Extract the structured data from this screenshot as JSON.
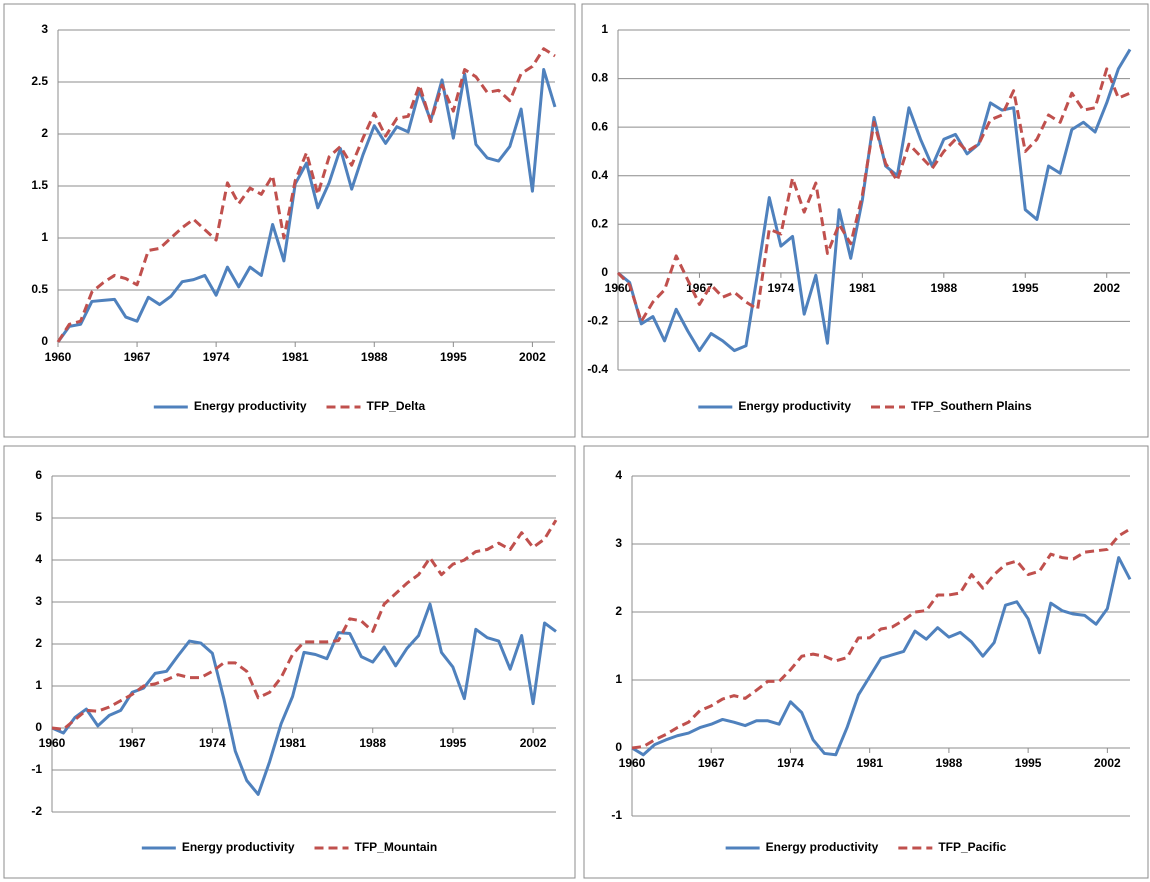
{
  "chart_data": [
    {
      "type": "line",
      "categories": [
        "1960",
        null,
        null,
        null,
        null,
        null,
        null,
        "1967",
        null,
        null,
        null,
        null,
        null,
        null,
        "1974",
        null,
        null,
        null,
        null,
        null,
        null,
        "1981",
        null,
        null,
        null,
        null,
        null,
        null,
        "1988",
        null,
        null,
        null,
        null,
        null,
        null,
        "1995",
        null,
        null,
        null,
        null,
        null,
        null,
        "2002",
        null,
        null
      ],
      "ylim": [
        0,
        3
      ],
      "yticks": [
        0,
        0.5,
        1,
        1.5,
        2,
        2.5,
        3
      ],
      "grid": true,
      "series": [
        {
          "name": "Energy productivity",
          "color": "#4f81bd",
          "dash": false,
          "values": [
            0,
            0.15,
            0.17,
            0.39,
            0.4,
            0.41,
            0.24,
            0.2,
            0.43,
            0.36,
            0.44,
            0.58,
            0.6,
            0.64,
            0.45,
            0.72,
            0.53,
            0.72,
            0.64,
            1.13,
            0.78,
            1.52,
            1.72,
            1.29,
            1.53,
            1.86,
            1.47,
            1.8,
            2.08,
            1.91,
            2.07,
            2.02,
            2.42,
            2.13,
            2.52,
            1.96,
            2.58,
            1.9,
            1.77,
            1.74,
            1.88,
            2.24,
            1.45,
            2.62,
            2.26
          ]
        },
        {
          "name": "TFP_Delta",
          "color": "#c0504d",
          "dash": true,
          "values": [
            0,
            0.17,
            0.2,
            0.48,
            0.57,
            0.64,
            0.61,
            0.55,
            0.88,
            0.9,
            1.0,
            1.1,
            1.18,
            1.08,
            0.98,
            1.53,
            1.33,
            1.48,
            1.42,
            1.6,
            1.0,
            1.55,
            1.82,
            1.42,
            1.78,
            1.88,
            1.7,
            1.96,
            2.2,
            1.98,
            2.15,
            2.17,
            2.47,
            2.12,
            2.47,
            2.22,
            2.62,
            2.55,
            2.4,
            2.42,
            2.32,
            2.58,
            2.65,
            2.82,
            2.75
          ]
        }
      ]
    },
    {
      "type": "line",
      "categories": [
        "1960",
        null,
        null,
        null,
        null,
        null,
        null,
        "1967",
        null,
        null,
        null,
        null,
        null,
        null,
        "1974",
        null,
        null,
        null,
        null,
        null,
        null,
        "1981",
        null,
        null,
        null,
        null,
        null,
        null,
        "1988",
        null,
        null,
        null,
        null,
        null,
        null,
        "1995",
        null,
        null,
        null,
        null,
        null,
        null,
        "2002",
        null,
        null
      ],
      "ylim": [
        -0.4,
        1
      ],
      "yticks": [
        -0.4,
        -0.2,
        0,
        0.2,
        0.4,
        0.6,
        0.8,
        1
      ],
      "grid": true,
      "series": [
        {
          "name": "Energy productivity",
          "color": "#4f81bd",
          "dash": false,
          "values": [
            0,
            -0.04,
            -0.21,
            -0.18,
            -0.28,
            -0.15,
            -0.24,
            -0.32,
            -0.25,
            -0.28,
            -0.32,
            -0.3,
            0.0,
            0.31,
            0.11,
            0.15,
            -0.17,
            -0.01,
            -0.29,
            0.26,
            0.06,
            0.3,
            0.64,
            0.44,
            0.4,
            0.68,
            0.55,
            0.44,
            0.55,
            0.57,
            0.49,
            0.53,
            0.7,
            0.67,
            0.68,
            0.26,
            0.22,
            0.44,
            0.41,
            0.59,
            0.62,
            0.58,
            0.7,
            0.84,
            0.92
          ]
        },
        {
          "name": "TFP_Southern Plains",
          "color": "#c0504d",
          "dash": true,
          "values": [
            0,
            -0.05,
            -0.2,
            -0.12,
            -0.07,
            0.07,
            -0.03,
            -0.13,
            -0.05,
            -0.1,
            -0.08,
            -0.12,
            -0.15,
            0.18,
            0.16,
            0.39,
            0.25,
            0.37,
            0.08,
            0.2,
            0.12,
            0.32,
            0.62,
            0.45,
            0.38,
            0.53,
            0.48,
            0.43,
            0.5,
            0.55,
            0.5,
            0.53,
            0.63,
            0.65,
            0.75,
            0.5,
            0.55,
            0.65,
            0.62,
            0.74,
            0.67,
            0.68,
            0.84,
            0.72,
            0.74
          ]
        }
      ]
    },
    {
      "type": "line",
      "categories": [
        "1960",
        null,
        null,
        null,
        null,
        null,
        null,
        "1967",
        null,
        null,
        null,
        null,
        null,
        null,
        "1974",
        null,
        null,
        null,
        null,
        null,
        null,
        "1981",
        null,
        null,
        null,
        null,
        null,
        null,
        "1988",
        null,
        null,
        null,
        null,
        null,
        null,
        "1995",
        null,
        null,
        null,
        null,
        null,
        null,
        "2002",
        null,
        null
      ],
      "ylim": [
        -2,
        6
      ],
      "yticks": [
        -2,
        -1,
        0,
        1,
        2,
        3,
        4,
        5,
        6
      ],
      "grid": true,
      "series": [
        {
          "name": "Energy productivity",
          "color": "#4f81bd",
          "dash": false,
          "values": [
            0,
            -0.12,
            0.25,
            0.45,
            0.05,
            0.3,
            0.42,
            0.85,
            0.95,
            1.3,
            1.35,
            1.72,
            2.07,
            2.02,
            1.78,
            0.7,
            -0.55,
            -1.25,
            -1.58,
            -0.8,
            0.1,
            0.75,
            1.8,
            1.75,
            1.65,
            2.27,
            2.25,
            1.7,
            1.57,
            1.93,
            1.48,
            1.9,
            2.2,
            2.95,
            1.8,
            1.45,
            0.7,
            2.35,
            2.15,
            2.07,
            1.4,
            2.2,
            0.58,
            2.5,
            2.3
          ]
        },
        {
          "name": "TFP_Mountain",
          "color": "#c0504d",
          "dash": true,
          "values": [
            0,
            -0.03,
            0.2,
            0.42,
            0.4,
            0.5,
            0.65,
            0.8,
            1.0,
            1.05,
            1.15,
            1.27,
            1.2,
            1.2,
            1.35,
            1.55,
            1.55,
            1.35,
            0.72,
            0.85,
            1.2,
            1.75,
            2.05,
            2.05,
            2.05,
            2.08,
            2.6,
            2.55,
            2.3,
            2.95,
            3.2,
            3.45,
            3.65,
            4.05,
            3.65,
            3.9,
            4.0,
            4.2,
            4.25,
            4.4,
            4.25,
            4.65,
            4.3,
            4.5,
            4.95
          ]
        }
      ]
    },
    {
      "type": "line",
      "categories": [
        "1960",
        null,
        null,
        null,
        null,
        null,
        null,
        "1967",
        null,
        null,
        null,
        null,
        null,
        null,
        "1974",
        null,
        null,
        null,
        null,
        null,
        null,
        "1981",
        null,
        null,
        null,
        null,
        null,
        null,
        "1988",
        null,
        null,
        null,
        null,
        null,
        null,
        "1995",
        null,
        null,
        null,
        null,
        null,
        null,
        "2002",
        null,
        null
      ],
      "ylim": [
        -1,
        4
      ],
      "yticks": [
        -1,
        0,
        1,
        2,
        3,
        4
      ],
      "grid": true,
      "series": [
        {
          "name": "Energy productivity",
          "color": "#4f81bd",
          "dash": false,
          "values": [
            0,
            -0.1,
            0.05,
            0.12,
            0.18,
            0.22,
            0.3,
            0.35,
            0.42,
            0.38,
            0.33,
            0.4,
            0.4,
            0.35,
            0.68,
            0.52,
            0.12,
            -0.08,
            -0.1,
            0.3,
            0.78,
            1.05,
            1.32,
            1.37,
            1.42,
            1.72,
            1.6,
            1.77,
            1.63,
            1.7,
            1.56,
            1.35,
            1.55,
            2.1,
            2.15,
            1.9,
            1.4,
            2.13,
            2.02,
            1.97,
            1.95,
            1.82,
            2.05,
            2.8,
            2.48
          ]
        },
        {
          "name": "TFP_Pacific",
          "color": "#c0504d",
          "dash": true,
          "values": [
            0,
            0.02,
            0.12,
            0.2,
            0.3,
            0.38,
            0.55,
            0.62,
            0.72,
            0.77,
            0.73,
            0.85,
            0.98,
            0.98,
            1.15,
            1.35,
            1.38,
            1.35,
            1.28,
            1.33,
            1.62,
            1.62,
            1.75,
            1.78,
            1.88,
            2.0,
            2.02,
            2.25,
            2.25,
            2.28,
            2.55,
            2.35,
            2.55,
            2.7,
            2.75,
            2.55,
            2.6,
            2.85,
            2.8,
            2.78,
            2.88,
            2.9,
            2.92,
            3.12,
            3.22
          ]
        }
      ]
    }
  ]
}
